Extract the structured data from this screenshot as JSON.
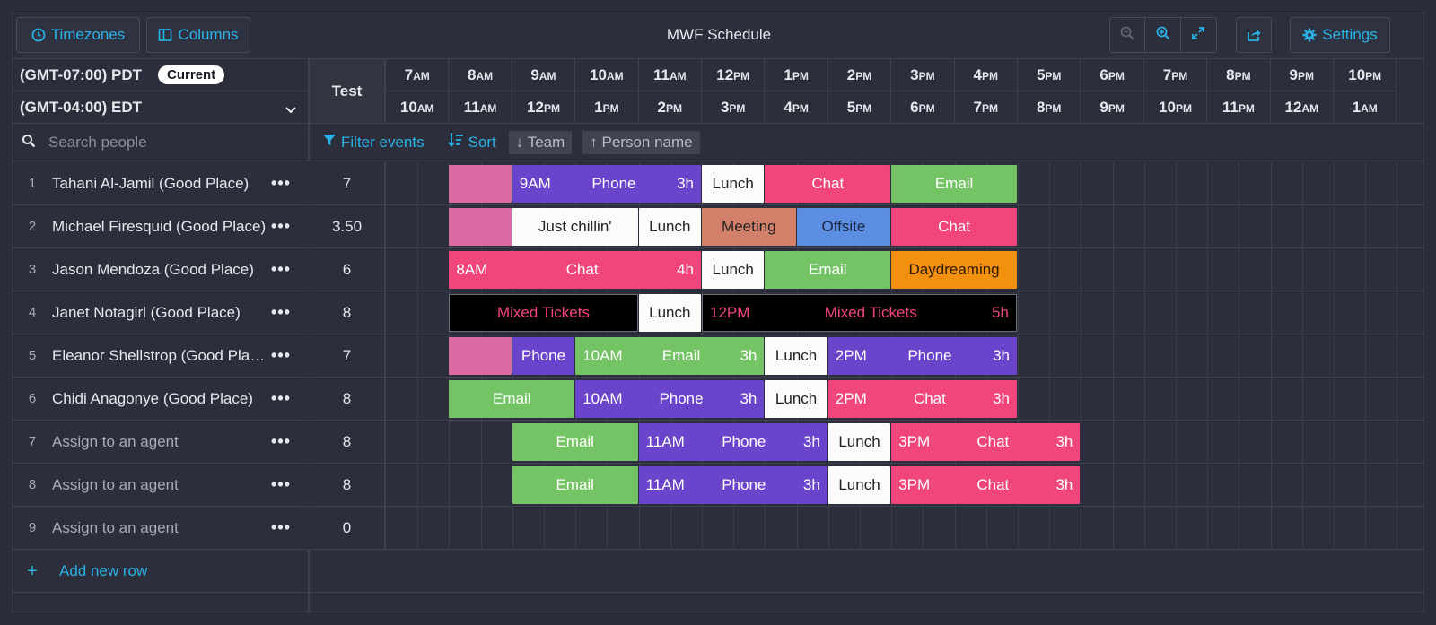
{
  "toolbar": {
    "timezones_label": "Timezones",
    "columns_label": "Columns",
    "title": "MWF Schedule",
    "settings_label": "Settings",
    "icons": [
      "clock-icon",
      "columns-icon",
      "zoom-out-icon",
      "zoom-in-icon",
      "expand-icon",
      "share-icon",
      "gear-icon"
    ]
  },
  "timezones": {
    "primary": "(GMT-07:00) PDT",
    "primary_badge": "Current",
    "secondary": "(GMT-04:00) EDT"
  },
  "test_column": {
    "label": "Test"
  },
  "hours_primary": [
    [
      "7",
      "AM"
    ],
    [
      "8",
      "AM"
    ],
    [
      "9",
      "AM"
    ],
    [
      "10",
      "AM"
    ],
    [
      "11",
      "AM"
    ],
    [
      "12",
      "PM"
    ],
    [
      "1",
      "PM"
    ],
    [
      "2",
      "PM"
    ],
    [
      "3",
      "PM"
    ],
    [
      "4",
      "PM"
    ],
    [
      "5",
      "PM"
    ],
    [
      "6",
      "PM"
    ],
    [
      "7",
      "PM"
    ],
    [
      "8",
      "PM"
    ],
    [
      "9",
      "PM"
    ],
    [
      "10",
      "PM"
    ]
  ],
  "hours_secondary": [
    [
      "10",
      "AM"
    ],
    [
      "11",
      "AM"
    ],
    [
      "12",
      "PM"
    ],
    [
      "1",
      "PM"
    ],
    [
      "2",
      "PM"
    ],
    [
      "3",
      "PM"
    ],
    [
      "4",
      "PM"
    ],
    [
      "5",
      "PM"
    ],
    [
      "6",
      "PM"
    ],
    [
      "7",
      "PM"
    ],
    [
      "8",
      "PM"
    ],
    [
      "9",
      "PM"
    ],
    [
      "10",
      "PM"
    ],
    [
      "11",
      "PM"
    ],
    [
      "12",
      "AM"
    ],
    [
      "1",
      "AM"
    ]
  ],
  "search": {
    "placeholder": "Search people"
  },
  "filters": {
    "filter_label": "Filter events",
    "sort_label": "Sort",
    "sort_chips": [
      "↓ Team",
      "↑ Person name"
    ]
  },
  "rows": [
    {
      "num": "1",
      "name": "Tahani Al-Jamil (Good Place)",
      "muted": false,
      "test": "7"
    },
    {
      "num": "2",
      "name": "Michael Firesquid (Good Place)",
      "muted": false,
      "test": "3.50"
    },
    {
      "num": "3",
      "name": "Jason Mendoza (Good Place)",
      "muted": false,
      "test": "6"
    },
    {
      "num": "4",
      "name": "Janet Notagirl (Good Place)",
      "muted": false,
      "test": "8"
    },
    {
      "num": "5",
      "name": "Eleanor Shellstrop (Good Place)",
      "muted": false,
      "test": "7"
    },
    {
      "num": "6",
      "name": "Chidi Anagonye (Good Place)",
      "muted": false,
      "test": "8"
    },
    {
      "num": "7",
      "name": "Assign to an agent",
      "muted": true,
      "test": "8"
    },
    {
      "num": "8",
      "name": "Assign to an agent",
      "muted": true,
      "test": "8"
    },
    {
      "num": "9",
      "name": "Assign to an agent",
      "muted": true,
      "test": "0"
    }
  ],
  "row_menu_label": "•••",
  "add_row": {
    "plus": "+",
    "label": "Add new row"
  },
  "colors": {
    "pink": "#d96aa2",
    "purple": "#6a45cc",
    "white": "#fbfbf9",
    "red": "#f0467c",
    "green": "#74c465",
    "salmon": "#d2806a",
    "blue": "#5b8de0",
    "orange": "#f4900f",
    "black": "#000000"
  },
  "events": [
    {
      "row": 0,
      "start": 1,
      "end": 2,
      "color": "pink",
      "text": "",
      "start_label": "",
      "dur_label": ""
    },
    {
      "row": 0,
      "start": 2,
      "end": 5,
      "color": "purple",
      "text": "Phone",
      "start_label": "9AM",
      "dur_label": "3h"
    },
    {
      "row": 0,
      "start": 5,
      "end": 6,
      "color": "white",
      "text": "Lunch",
      "start_label": "",
      "dur_label": ""
    },
    {
      "row": 0,
      "start": 6,
      "end": 8,
      "color": "red",
      "text": "Chat",
      "start_label": "",
      "dur_label": ""
    },
    {
      "row": 0,
      "start": 8,
      "end": 10,
      "color": "green",
      "text": "Email",
      "start_label": "",
      "dur_label": ""
    },
    {
      "row": 1,
      "start": 1,
      "end": 2,
      "color": "pink",
      "text": "",
      "start_label": "",
      "dur_label": ""
    },
    {
      "row": 1,
      "start": 2,
      "end": 4,
      "color": "white",
      "text": "Just chillin'",
      "start_label": "",
      "dur_label": ""
    },
    {
      "row": 1,
      "start": 4,
      "end": 5,
      "color": "white",
      "text": "Lunch",
      "start_label": "",
      "dur_label": ""
    },
    {
      "row": 1,
      "start": 5,
      "end": 6.5,
      "color": "salmon",
      "text": "Meeting",
      "start_label": "",
      "dur_label": ""
    },
    {
      "row": 1,
      "start": 6.5,
      "end": 8,
      "color": "blue",
      "text": "Offsite",
      "start_label": "",
      "dur_label": ""
    },
    {
      "row": 1,
      "start": 8,
      "end": 10,
      "color": "red",
      "text": "Chat",
      "start_label": "",
      "dur_label": ""
    },
    {
      "row": 2,
      "start": 1,
      "end": 5,
      "color": "red",
      "text": "Chat",
      "start_label": "8AM",
      "dur_label": "4h"
    },
    {
      "row": 2,
      "start": 5,
      "end": 6,
      "color": "white",
      "text": "Lunch",
      "start_label": "",
      "dur_label": ""
    },
    {
      "row": 2,
      "start": 6,
      "end": 8,
      "color": "green",
      "text": "Email",
      "start_label": "",
      "dur_label": ""
    },
    {
      "row": 2,
      "start": 8,
      "end": 10,
      "color": "orange",
      "text": "Daydreaming",
      "start_label": "",
      "dur_label": ""
    },
    {
      "row": 3,
      "start": 1,
      "end": 4,
      "color": "black",
      "text": "Mixed Tickets",
      "start_label": "",
      "dur_label": ""
    },
    {
      "row": 3,
      "start": 4,
      "end": 5,
      "color": "white",
      "text": "Lunch",
      "start_label": "",
      "dur_label": ""
    },
    {
      "row": 3,
      "start": 5,
      "end": 10,
      "color": "black",
      "text": "Mixed Tickets",
      "start_label": "12PM",
      "dur_label": "5h"
    },
    {
      "row": 4,
      "start": 1,
      "end": 2,
      "color": "pink",
      "text": "",
      "start_label": "",
      "dur_label": ""
    },
    {
      "row": 4,
      "start": 2,
      "end": 3,
      "color": "purple",
      "text": "Phone",
      "start_label": "",
      "dur_label": ""
    },
    {
      "row": 4,
      "start": 3,
      "end": 6,
      "color": "green",
      "text": "Email",
      "start_label": "10AM",
      "dur_label": "3h"
    },
    {
      "row": 4,
      "start": 6,
      "end": 7,
      "color": "white",
      "text": "Lunch",
      "start_label": "",
      "dur_label": ""
    },
    {
      "row": 4,
      "start": 7,
      "end": 10,
      "color": "purple",
      "text": "Phone",
      "start_label": "2PM",
      "dur_label": "3h"
    },
    {
      "row": 5,
      "start": 1,
      "end": 3,
      "color": "green",
      "text": "Email",
      "start_label": "",
      "dur_label": ""
    },
    {
      "row": 5,
      "start": 3,
      "end": 6,
      "color": "purple",
      "text": "Phone",
      "start_label": "10AM",
      "dur_label": "3h"
    },
    {
      "row": 5,
      "start": 6,
      "end": 7,
      "color": "white",
      "text": "Lunch",
      "start_label": "",
      "dur_label": ""
    },
    {
      "row": 5,
      "start": 7,
      "end": 10,
      "color": "red",
      "text": "Chat",
      "start_label": "2PM",
      "dur_label": "3h"
    },
    {
      "row": 6,
      "start": 2,
      "end": 4,
      "color": "green",
      "text": "Email",
      "start_label": "",
      "dur_label": ""
    },
    {
      "row": 6,
      "start": 4,
      "end": 7,
      "color": "purple",
      "text": "Phone",
      "start_label": "11AM",
      "dur_label": "3h"
    },
    {
      "row": 6,
      "start": 7,
      "end": 8,
      "color": "white",
      "text": "Lunch",
      "start_label": "",
      "dur_label": ""
    },
    {
      "row": 6,
      "start": 8,
      "end": 11,
      "color": "red",
      "text": "Chat",
      "start_label": "3PM",
      "dur_label": "3h"
    },
    {
      "row": 7,
      "start": 2,
      "end": 4,
      "color": "green",
      "text": "Email",
      "start_label": "",
      "dur_label": ""
    },
    {
      "row": 7,
      "start": 4,
      "end": 7,
      "color": "purple",
      "text": "Phone",
      "start_label": "11AM",
      "dur_label": "3h"
    },
    {
      "row": 7,
      "start": 7,
      "end": 8,
      "color": "white",
      "text": "Lunch",
      "start_label": "",
      "dur_label": ""
    },
    {
      "row": 7,
      "start": 8,
      "end": 11,
      "color": "red",
      "text": "Chat",
      "start_label": "3PM",
      "dur_label": "3h"
    }
  ]
}
